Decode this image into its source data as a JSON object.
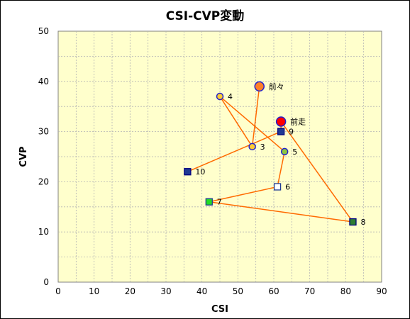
{
  "chart_data": {
    "type": "scatter",
    "title": "CSI-CVP変動",
    "xlabel": "CSI",
    "ylabel": "CVP",
    "xlim": [
      0,
      90
    ],
    "ylim": [
      0,
      50
    ],
    "x_ticks": [
      0,
      10,
      20,
      30,
      40,
      50,
      60,
      70,
      80,
      90
    ],
    "y_ticks": [
      0,
      10,
      20,
      30,
      40,
      50
    ],
    "grid": true,
    "plot_background": "#ffffcc",
    "grid_color": "#b3b3b3",
    "line_color": "#ff6a00",
    "path_order": [
      "前々",
      "4",
      "3",
      "9",
      "10",
      "10"
    ],
    "points": [
      {
        "label": "前々",
        "x": 56,
        "y": 39,
        "marker": "circle",
        "fill": "#ff7f27",
        "stroke": "#2222cc",
        "size": "large"
      },
      {
        "label": "前走",
        "x": 62,
        "y": 32,
        "marker": "circle",
        "fill": "#ff0000",
        "stroke": "#2222cc",
        "size": "large"
      },
      {
        "label": "9",
        "x": 62,
        "y": 30,
        "marker": "square",
        "fill": "#1f3a93",
        "stroke": "#000080"
      },
      {
        "label": "3",
        "x": 54,
        "y": 27,
        "marker": "circle",
        "fill": "#ffcc33",
        "stroke": "#2222cc"
      },
      {
        "label": "4",
        "x": 45,
        "y": 37,
        "marker": "circle",
        "fill": "#ffcc33",
        "stroke": "#2222cc"
      },
      {
        "label": "5",
        "x": 63,
        "y": 26,
        "marker": "circle",
        "fill": "#8dc63f",
        "stroke": "#2222cc"
      },
      {
        "label": "10",
        "x": 36,
        "y": 22,
        "marker": "square",
        "fill": "#1f3a93",
        "stroke": "#000080"
      },
      {
        "label": "6",
        "x": 61,
        "y": 19,
        "marker": "square",
        "fill": "#ffffff",
        "stroke": "#1f3a93"
      },
      {
        "label": "7",
        "x": 42,
        "y": 16,
        "marker": "square",
        "fill": "#22dd22",
        "stroke": "#1f3a93"
      },
      {
        "label": "8",
        "x": 82,
        "y": 12,
        "marker": "square",
        "fill": "#2e7d32",
        "stroke": "#000080"
      }
    ],
    "path": [
      "前々",
      "3",
      "4",
      "5",
      "6",
      "7",
      "8",
      "前走",
      "9",
      "10"
    ]
  }
}
